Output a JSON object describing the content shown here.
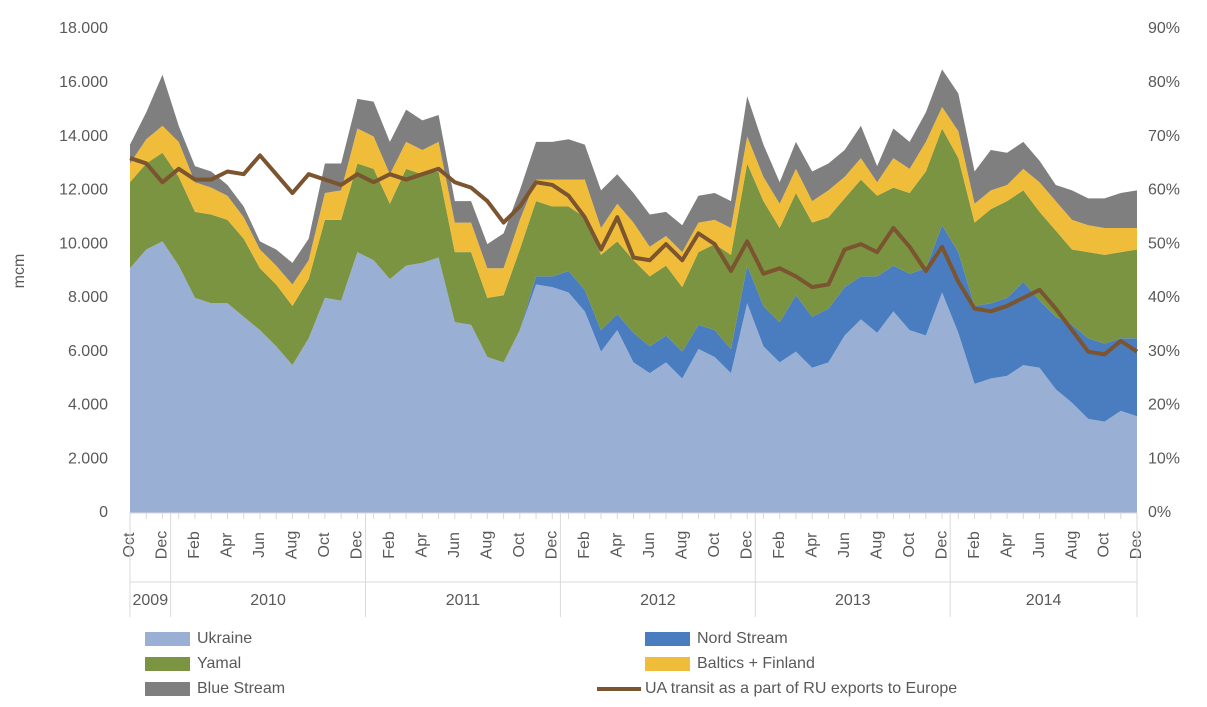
{
  "chart_data": {
    "type": "stacked-area-line",
    "y_label": "mcm",
    "categories": [
      "Oct",
      null,
      "Dec",
      null,
      "Feb",
      null,
      "Apr",
      null,
      "Jun",
      null,
      "Aug",
      null,
      "Oct",
      null,
      "Dec",
      null,
      "Feb",
      null,
      "Apr",
      null,
      "Jun",
      null,
      "Aug",
      null,
      "Oct",
      null,
      "Dec",
      null,
      "Feb",
      null,
      "Apr",
      null,
      "Jun",
      null,
      "Aug",
      null,
      "Oct",
      null,
      "Dec",
      null,
      "Feb",
      null,
      "Apr",
      null,
      "Jun",
      null,
      "Aug",
      null,
      "Oct",
      null,
      "Dec",
      null,
      "Feb",
      null,
      "Apr",
      null,
      "Jun",
      null,
      "Aug",
      null,
      "Oct",
      null,
      "Dec"
    ],
    "year_groups": [
      {
        "label": "2009",
        "months": 3
      },
      {
        "label": "2010",
        "months": 12
      },
      {
        "label": "2011",
        "months": 12
      },
      {
        "label": "2012",
        "months": 12
      },
      {
        "label": "2013",
        "months": 12
      },
      {
        "label": "2014",
        "months": 12
      }
    ],
    "series": [
      {
        "name": "Ukraine",
        "color": "#9aafd4",
        "values": [
          9100,
          9800,
          10100,
          9200,
          8000,
          7800,
          7800,
          7300,
          6800,
          6200,
          5500,
          6500,
          8000,
          7900,
          9700,
          9400,
          8700,
          9200,
          9300,
          9500,
          7100,
          7000,
          5800,
          5600,
          6800,
          8500,
          8400,
          8200,
          7500,
          6000,
          6800,
          5600,
          5200,
          5600,
          5000,
          6100,
          5800,
          5200,
          7800,
          6200,
          5600,
          6000,
          5400,
          5600,
          6600,
          7200,
          6700,
          7500,
          6800,
          6600,
          8200,
          6700,
          4800,
          5000,
          5100,
          5500,
          5400,
          4600,
          4100,
          3500,
          3400,
          3800,
          3600
        ]
      },
      {
        "name": "Nord Stream",
        "color": "#4a7dc0",
        "values": [
          0,
          0,
          0,
          0,
          0,
          0,
          0,
          0,
          0,
          0,
          0,
          0,
          0,
          0,
          0,
          0,
          0,
          0,
          0,
          0,
          0,
          0,
          0,
          0,
          0,
          300,
          400,
          800,
          800,
          800,
          600,
          1100,
          1000,
          1000,
          1000,
          900,
          1000,
          900,
          1400,
          1500,
          1500,
          2100,
          1900,
          2000,
          1800,
          1600,
          2100,
          1700,
          2100,
          2500,
          2500,
          3000,
          2900,
          2800,
          2900,
          3100,
          2500,
          2700,
          2900,
          3000,
          2900,
          2700,
          2900
        ]
      },
      {
        "name": "Yamal",
        "color": "#7b9441",
        "values": [
          3200,
          3200,
          3300,
          3300,
          3200,
          3300,
          3100,
          2900,
          2300,
          2300,
          2200,
          2200,
          2900,
          3000,
          3300,
          3400,
          2800,
          3600,
          3300,
          3200,
          2600,
          2700,
          2200,
          2500,
          3000,
          2800,
          2600,
          2400,
          2700,
          2800,
          2700,
          2700,
          2600,
          2600,
          2400,
          2700,
          3200,
          3500,
          3800,
          3900,
          3500,
          3800,
          3500,
          3400,
          3300,
          3600,
          3000,
          2900,
          3000,
          3600,
          3600,
          3500,
          3100,
          3500,
          3600,
          3400,
          3300,
          3200,
          2800,
          3200,
          3300,
          3200,
          3300
        ]
      },
      {
        "name": "Baltics + Finland",
        "color": "#f0bd3a",
        "values": [
          700,
          900,
          1000,
          1300,
          1100,
          1000,
          900,
          800,
          700,
          700,
          800,
          700,
          1000,
          1100,
          1300,
          1200,
          1100,
          1000,
          900,
          1100,
          1100,
          1100,
          1100,
          1000,
          1100,
          800,
          1000,
          1000,
          1400,
          1000,
          1400,
          1400,
          1100,
          1100,
          1300,
          1100,
          900,
          1000,
          1000,
          900,
          900,
          900,
          800,
          1000,
          800,
          800,
          500,
          1100,
          900,
          1100,
          800,
          1000,
          700,
          700,
          600,
          800,
          1100,
          1100,
          1100,
          1000,
          1000,
          900,
          800
        ]
      },
      {
        "name": "Blue Stream",
        "color": "#7f7f7f",
        "values": [
          700,
          1000,
          1900,
          600,
          600,
          600,
          400,
          400,
          300,
          600,
          800,
          800,
          1100,
          1000,
          1100,
          1300,
          1200,
          1200,
          1100,
          1000,
          800,
          800,
          900,
          1300,
          1100,
          1400,
          1400,
          1500,
          1300,
          1400,
          1100,
          1100,
          1200,
          900,
          1000,
          1000,
          1000,
          1000,
          1500,
          1200,
          800,
          1000,
          1100,
          1000,
          1000,
          1200,
          600,
          1100,
          1000,
          1100,
          1400,
          1400,
          1200,
          1500,
          1200,
          1000,
          800,
          600,
          1100,
          1000,
          1100,
          1300,
          1400
        ]
      },
      {
        "name": "UA transit as a part of RU exports to Europe",
        "color": "#7b5430",
        "axis": "y2",
        "values": [
          66,
          65,
          61.5,
          64,
          62,
          62,
          63.5,
          63,
          66.5,
          63,
          59.5,
          63,
          62,
          61,
          63,
          61.5,
          63,
          62,
          63,
          64,
          61.5,
          60.5,
          58,
          54,
          57,
          61.5,
          61,
          59,
          55,
          49,
          55,
          47.5,
          47,
          50,
          47,
          52,
          50,
          45,
          50.5,
          44.5,
          45.5,
          44,
          42,
          42.5,
          49,
          50,
          48.5,
          53,
          49.5,
          45,
          49.5,
          43,
          38,
          37.5,
          38.5,
          40,
          41.5,
          38,
          34,
          30,
          29.5,
          32,
          30
        ]
      }
    ],
    "ylim": [
      0,
      18000
    ],
    "yticks": [
      0,
      {
        "value": 2000,
        "label": "2.000"
      },
      {
        "value": 4000,
        "label": "4.000"
      },
      {
        "value": 6000,
        "label": "6.000"
      },
      {
        "value": 8000,
        "label": "8.000"
      },
      {
        "value": 10000,
        "label": "10.000"
      },
      {
        "value": 12000,
        "label": "12.000"
      },
      {
        "value": 14000,
        "label": "14.000"
      },
      {
        "value": 16000,
        "label": "16.000"
      },
      {
        "value": 18000,
        "label": "18.000"
      }
    ],
    "y2lim": [
      0,
      90
    ],
    "y2ticks": [
      {
        "value": 0,
        "label": "0%"
      },
      {
        "value": 10,
        "label": "10%"
      },
      {
        "value": 20,
        "label": "20%"
      },
      {
        "value": 30,
        "label": "30%"
      },
      {
        "value": 40,
        "label": "40%"
      },
      {
        "value": 50,
        "label": "50%"
      },
      {
        "value": 60,
        "label": "60%"
      },
      {
        "value": 70,
        "label": "70%"
      },
      {
        "value": 80,
        "label": "80%"
      },
      {
        "value": 90,
        "label": "90%"
      }
    ],
    "grid": false,
    "legend": "bottom"
  }
}
